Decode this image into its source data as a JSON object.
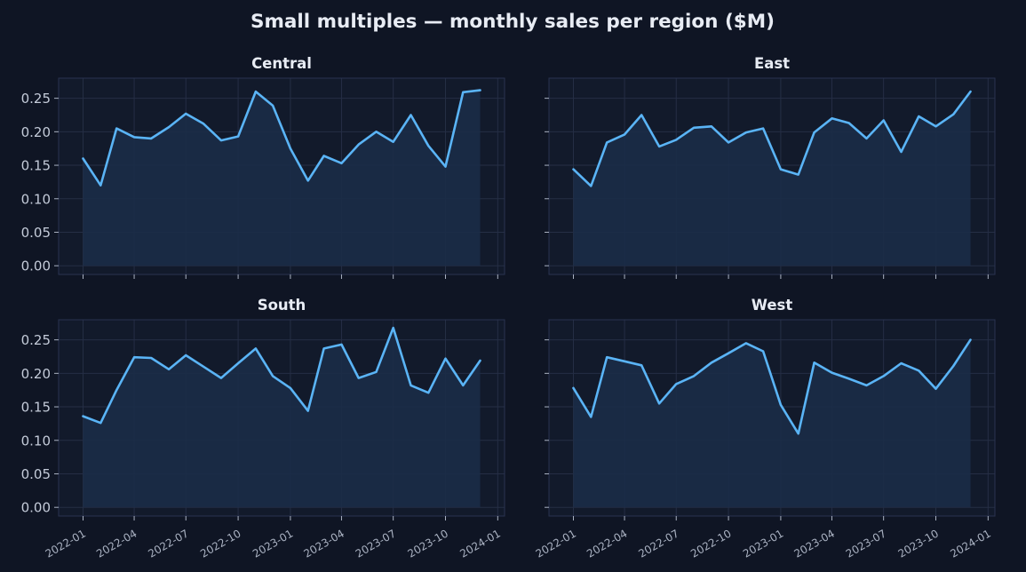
{
  "chart_data": {
    "type": "area",
    "title": "Small multiples — monthly sales per region ($M)",
    "xlabel": "",
    "ylabel": "",
    "x": [
      "2022-01",
      "2022-02",
      "2022-03",
      "2022-04",
      "2022-05",
      "2022-06",
      "2022-07",
      "2022-08",
      "2022-09",
      "2022-10",
      "2022-11",
      "2022-12",
      "2023-01",
      "2023-02",
      "2023-03",
      "2023-04",
      "2023-05",
      "2023-06",
      "2023-07",
      "2023-08",
      "2023-09",
      "2023-10",
      "2023-11",
      "2023-12"
    ],
    "xlim": [
      "2021-11-19",
      "2024-01-13"
    ],
    "ylim": [
      -0.013,
      0.28
    ],
    "x_ticks": [
      "2022-01",
      "2022-04",
      "2022-07",
      "2022-10",
      "2023-01",
      "2023-04",
      "2023-07",
      "2023-10",
      "2024-01"
    ],
    "y_ticks": [
      "0.00",
      "0.05",
      "0.10",
      "0.15",
      "0.20",
      "0.25"
    ],
    "grid": true,
    "panels": [
      {
        "name": "Central",
        "values": [
          0.16,
          0.12,
          0.205,
          0.192,
          0.19,
          0.207,
          0.227,
          0.212,
          0.187,
          0.193,
          0.26,
          0.239,
          0.175,
          0.127,
          0.164,
          0.153,
          0.181,
          0.2,
          0.185,
          0.225,
          0.179,
          0.148,
          0.259,
          0.262
        ]
      },
      {
        "name": "East",
        "values": [
          0.144,
          0.119,
          0.184,
          0.196,
          0.225,
          0.178,
          0.188,
          0.206,
          0.208,
          0.184,
          0.199,
          0.205,
          0.144,
          0.136,
          0.199,
          0.22,
          0.213,
          0.19,
          0.217,
          0.17,
          0.223,
          0.208,
          0.226,
          0.26
        ]
      },
      {
        "name": "South",
        "values": [
          0.136,
          0.126,
          0.175,
          0.224,
          0.223,
          0.206,
          0.227,
          0.21,
          0.193,
          0.215,
          0.237,
          0.196,
          0.178,
          0.144,
          0.237,
          0.243,
          0.193,
          0.202,
          0.268,
          0.182,
          0.171,
          0.222,
          0.182,
          0.219
        ]
      },
      {
        "name": "West",
        "values": [
          0.178,
          0.135,
          0.224,
          0.218,
          0.212,
          0.155,
          0.184,
          0.196,
          0.216,
          0.23,
          0.245,
          0.233,
          0.153,
          0.11,
          0.216,
          0.201,
          0.192,
          0.182,
          0.196,
          0.215,
          0.204,
          0.177,
          0.211,
          0.25
        ]
      }
    ],
    "colors": {
      "background": "#0f1524",
      "plot_background": "#121a2b",
      "line": "#5ab4f6",
      "fill": "#1b2c47",
      "grid": "#252e45",
      "spine": "#2a3350",
      "text": "#e8ecf4",
      "tick_text": "#c4cbd9"
    }
  }
}
